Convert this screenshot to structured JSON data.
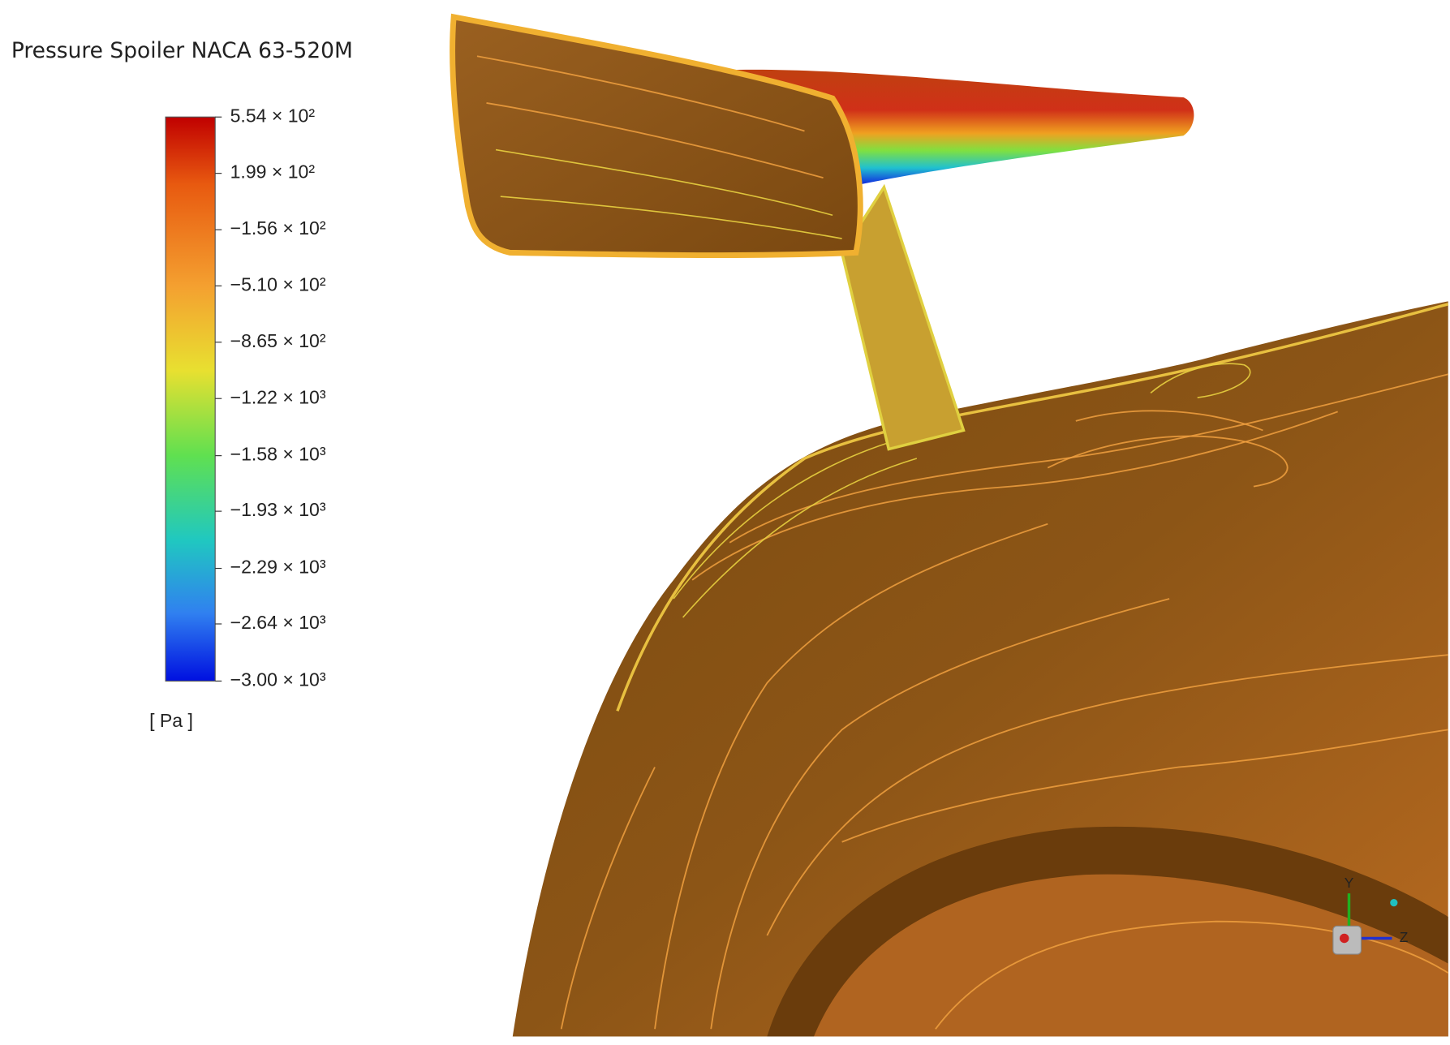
{
  "title": "Pressure Spoiler NACA 63-520M",
  "legend": {
    "range": [
      -3000,
      554
    ],
    "ticks": [
      {
        "value": 554,
        "label": "5.54 × 10²"
      },
      {
        "value": 199,
        "label": "1.99 × 10²"
      },
      {
        "value": -156,
        "label": "−1.56 × 10²"
      },
      {
        "value": -510,
        "label": "−5.10 × 10²"
      },
      {
        "value": -865,
        "label": "−8.65 × 10²"
      },
      {
        "value": -1220,
        "label": "−1.22 × 10³"
      },
      {
        "value": -1580,
        "label": "−1.58 × 10³"
      },
      {
        "value": -1930,
        "label": "−1.93 × 10³"
      },
      {
        "value": -2290,
        "label": "−2.29 × 10³"
      },
      {
        "value": -2640,
        "label": "−2.64 × 10³"
      },
      {
        "value": -3000,
        "label": "−3.00 × 10³"
      }
    ],
    "unit": "[ Pa ]"
  },
  "triad": {
    "y": "Y",
    "z": "Z"
  }
}
